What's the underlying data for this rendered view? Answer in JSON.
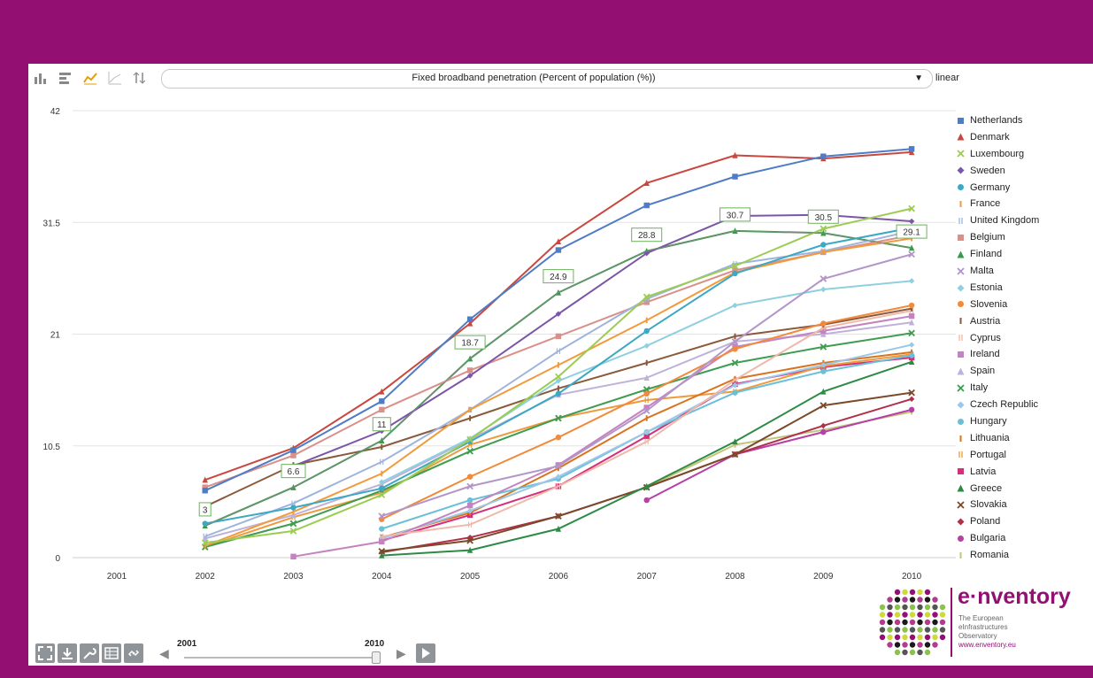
{
  "toolbar": {
    "indicator": "Fixed broadband penetration (Percent of population (%))",
    "scale": "linear",
    "icons": [
      "bar-chart-icon",
      "horizontal-bar-icon",
      "line-chart-icon",
      "scatter-icon",
      "sort-icon"
    ]
  },
  "slider": {
    "start_year": "2001",
    "end_year": "2010"
  },
  "logo": {
    "brand": "e·nventory",
    "line1": "The European",
    "line2": "eInfrastructures",
    "line3": "Observatory",
    "url": "www.enventory.eu"
  },
  "colors": {
    "background": "#930f72",
    "panel": "#ffffff"
  },
  "chart_data": {
    "type": "line",
    "title": "Fixed broadband penetration (Percent of population (%))",
    "x": [
      "2001",
      "2002",
      "2003",
      "2004",
      "2005",
      "2006",
      "2007",
      "2008",
      "2009",
      "2010"
    ],
    "ylim": [
      0,
      42
    ],
    "yticks": [
      "0",
      "10.5",
      "21",
      "31.5",
      "42"
    ],
    "grid": true,
    "legend_position": "right",
    "series": [
      {
        "name": "Netherlands",
        "color": "#4f7cc4",
        "marker": "square",
        "values": [
          null,
          6.3,
          10.1,
          14.7,
          22.4,
          28.9,
          33.1,
          35.8,
          37.7,
          38.4
        ]
      },
      {
        "name": "Denmark",
        "color": "#c9473e",
        "marker": "triangle",
        "values": [
          null,
          7.3,
          10.3,
          15.6,
          22.0,
          29.7,
          35.2,
          37.8,
          37.5,
          38.1
        ]
      },
      {
        "name": "Luxembourg",
        "color": "#9ccc52",
        "marker": "x",
        "values": [
          null,
          1.4,
          2.5,
          5.9,
          11.1,
          17.0,
          24.5,
          27.4,
          30.9,
          32.8
        ]
      },
      {
        "name": "Sweden",
        "color": "#7b56a8",
        "marker": "diamond",
        "values": [
          null,
          null,
          8.6,
          11.9,
          17.1,
          22.9,
          28.6,
          32.1,
          32.2,
          31.6
        ]
      },
      {
        "name": "Germany",
        "color": "#3ca8c4",
        "marker": "circle",
        "values": [
          null,
          3.2,
          4.7,
          6.5,
          10.9,
          15.4,
          21.3,
          26.7,
          29.4,
          31.0
        ]
      },
      {
        "name": "France",
        "color": "#f29a3c",
        "marker": "bar",
        "values": [
          null,
          1.1,
          4.3,
          7.9,
          13.9,
          18.1,
          22.3,
          26.8,
          28.7,
          30.0
        ]
      },
      {
        "name": "United Kingdom",
        "color": "#9fb4dc",
        "marker": "dbar",
        "values": [
          null,
          2.0,
          5.1,
          9.0,
          13.9,
          19.4,
          24.3,
          27.6,
          28.8,
          30.7
        ]
      },
      {
        "name": "Belgium",
        "color": "#d9908a",
        "marker": "square",
        "values": [
          null,
          6.6,
          9.6,
          13.9,
          17.6,
          20.8,
          24.0,
          27.0,
          28.7,
          30.3
        ]
      },
      {
        "name": "Finland",
        "color": "#3a9a4a",
        "marker": "triangle",
        "values": [
          null,
          3.0,
          6.6,
          11.0,
          18.7,
          24.9,
          28.8,
          30.7,
          30.5,
          29.1
        ]
      },
      {
        "name": "Malta",
        "color": "#b396c8",
        "marker": "x",
        "values": [
          null,
          null,
          null,
          3.9,
          6.7,
          8.6,
          13.8,
          20.3,
          26.2,
          28.5
        ]
      },
      {
        "name": "Estonia",
        "color": "#8fd0e0",
        "marker": "diamond",
        "values": [
          null,
          null,
          null,
          7.1,
          11.2,
          16.6,
          19.9,
          23.7,
          25.2,
          26.0
        ]
      },
      {
        "name": "Slovenia",
        "color": "#f28a3a",
        "marker": "circle",
        "values": [
          null,
          null,
          null,
          3.6,
          7.6,
          11.3,
          15.4,
          19.6,
          22.0,
          23.7
        ]
      },
      {
        "name": "Austria",
        "color": "#8b5a3c",
        "marker": "bar",
        "values": [
          null,
          4.8,
          8.7,
          10.4,
          13.1,
          15.9,
          18.3,
          20.8,
          21.9,
          23.4
        ]
      },
      {
        "name": "Cyprus",
        "color": "#f0b8a8",
        "marker": "dbar",
        "values": [
          null,
          null,
          null,
          2.0,
          3.1,
          6.7,
          10.9,
          16.7,
          21.6,
          23.2
        ]
      },
      {
        "name": "Ireland",
        "color": "#c483c0",
        "marker": "square",
        "values": [
          null,
          null,
          0.1,
          1.5,
          4.9,
          8.7,
          14.1,
          19.8,
          21.3,
          22.7
        ]
      },
      {
        "name": "Spain",
        "color": "#bfb2da",
        "marker": "triangle",
        "values": [
          null,
          1.8,
          4.0,
          6.9,
          11.1,
          15.3,
          16.9,
          20.3,
          21.0,
          22.1
        ]
      },
      {
        "name": "Italy",
        "color": "#3f9c50",
        "marker": "x",
        "values": [
          null,
          1.0,
          3.2,
          6.3,
          10.0,
          13.1,
          15.8,
          18.3,
          19.8,
          21.1
        ]
      },
      {
        "name": "Czech Republic",
        "color": "#9bc7e8",
        "marker": "diamond",
        "values": [
          null,
          null,
          null,
          1.8,
          4.4,
          7.6,
          11.8,
          16.2,
          18.1,
          20.0
        ]
      },
      {
        "name": "Hungary",
        "color": "#6ac0d8",
        "marker": "circle",
        "values": [
          null,
          null,
          null,
          2.7,
          5.4,
          7.4,
          11.8,
          15.5,
          17.5,
          19.0
        ]
      },
      {
        "name": "Lithuania",
        "color": "#d8741f",
        "marker": "bar",
        "values": [
          null,
          null,
          null,
          1.9,
          4.2,
          8.4,
          13.1,
          16.8,
          18.3,
          19.3
        ]
      },
      {
        "name": "Portugal",
        "color": "#ee9a3c",
        "marker": "dbar",
        "values": [
          null,
          1.0,
          3.8,
          6.1,
          10.6,
          13.1,
          14.8,
          15.6,
          18.0,
          19.1
        ]
      },
      {
        "name": "Latvia",
        "color": "#d52e7a",
        "marker": "square",
        "values": [
          null,
          null,
          null,
          1.6,
          4.0,
          6.7,
          11.4,
          16.3,
          17.9,
          18.8
        ]
      },
      {
        "name": "Greece",
        "color": "#2e8b45",
        "marker": "triangle",
        "values": [
          null,
          null,
          null,
          0.2,
          0.7,
          2.7,
          6.7,
          10.9,
          15.6,
          18.4
        ]
      },
      {
        "name": "Slovakia",
        "color": "#7a4a2a",
        "marker": "x",
        "values": [
          null,
          null,
          null,
          0.6,
          1.6,
          3.9,
          6.6,
          9.7,
          14.3,
          15.5
        ]
      },
      {
        "name": "Poland",
        "color": "#b0304a",
        "marker": "diamond",
        "values": [
          null,
          null,
          null,
          0.5,
          1.9,
          3.9,
          6.6,
          9.7,
          12.4,
          14.9
        ]
      },
      {
        "name": "Bulgaria",
        "color": "#b640a6",
        "marker": "circle",
        "values": [
          null,
          null,
          null,
          null,
          null,
          null,
          5.4,
          9.7,
          11.8,
          13.9
        ]
      },
      {
        "name": "Romania",
        "color": "#c2c67a",
        "marker": "bar",
        "values": [
          null,
          null,
          null,
          null,
          null,
          null,
          6.6,
          10.6,
          12.0,
          13.7
        ]
      }
    ],
    "annotations": [
      {
        "x": "2002",
        "y": 3.0,
        "label": "3"
      },
      {
        "x": "2003",
        "y": 6.6,
        "label": "6.6"
      },
      {
        "x": "2004",
        "y": 11.0,
        "label": "11"
      },
      {
        "x": "2005",
        "y": 18.7,
        "label": "18.7"
      },
      {
        "x": "2006",
        "y": 24.9,
        "label": "24.9"
      },
      {
        "x": "2007",
        "y": 28.8,
        "label": "28.8"
      },
      {
        "x": "2008",
        "y": 30.7,
        "label": "30.7"
      },
      {
        "x": "2009",
        "y": 30.5,
        "label": "30.5"
      },
      {
        "x": "2010",
        "y": 29.1,
        "label": "29.1"
      }
    ]
  }
}
